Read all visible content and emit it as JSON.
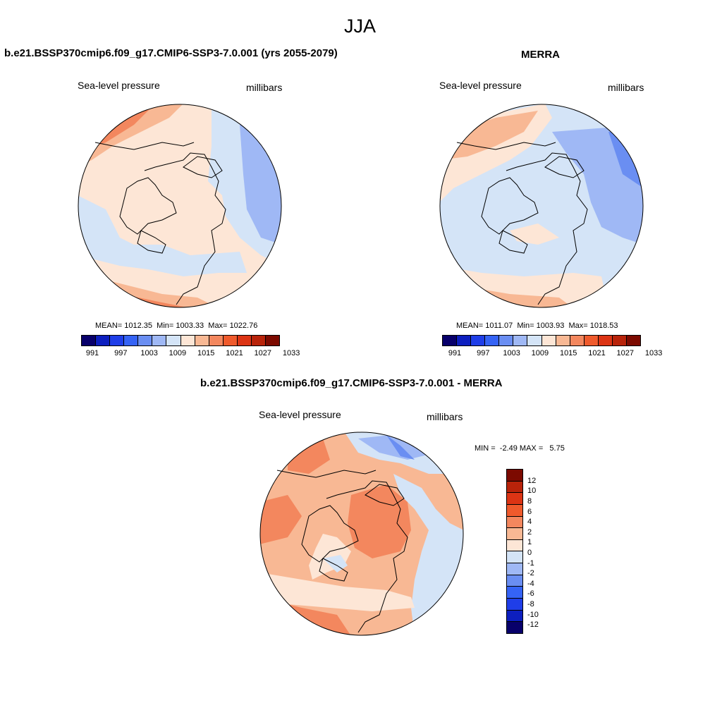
{
  "figure": {
    "season": "JJA"
  },
  "colors": {
    "abs_palette": [
      "#08006b",
      "#0d1fbf",
      "#1f3ee8",
      "#3563f5",
      "#6a8ef2",
      "#9fb8f5",
      "#d4e4f7",
      "#fde6d6",
      "#f8b894",
      "#f3875e",
      "#ef5a2c",
      "#dc3414",
      "#b8230a",
      "#7c0a00"
    ],
    "diff_palette": [
      "#7c0a00",
      "#b8230a",
      "#dc3414",
      "#ef5a2c",
      "#f3875e",
      "#f8b894",
      "#fde6d6",
      "#d4e4f7",
      "#9fb8f5",
      "#6a8ef2",
      "#3563f5",
      "#1f3ee8",
      "#0d1fbf",
      "#08006b"
    ]
  },
  "panels": {
    "model": {
      "title": "b.e21.BSSP370cmip6.f09_g17.CMIP6-SSP3-7.0.001 (yrs 2055-2079)",
      "variable": "Sea-level pressure",
      "units": "millibars",
      "stats": {
        "mean_label": "MEAN=",
        "mean": "1012.35",
        "min_label": "Min=",
        "min": "1003.33",
        "max_label": "Max=",
        "max": "1022.76"
      },
      "colorbar_ticks": [
        "991",
        "997",
        "1003",
        "1009",
        "1015",
        "1021",
        "1027",
        "1033"
      ]
    },
    "obs": {
      "title": "MERRA",
      "variable": "Sea-level pressure",
      "units": "millibars",
      "stats": {
        "mean_label": "MEAN=",
        "mean": "1011.07",
        "min_label": "Min=",
        "min": "1003.93",
        "max_label": "Max=",
        "max": "1018.53"
      },
      "colorbar_ticks": [
        "991",
        "997",
        "1003",
        "1009",
        "1015",
        "1021",
        "1027",
        "1033"
      ]
    },
    "diff": {
      "title": "b.e21.BSSP370cmip6.f09_g17.CMIP6-SSP3-7.0.001 - MERRA",
      "variable": "Sea-level pressure",
      "units": "millibars",
      "minmax": {
        "min_label": "MIN =",
        "min": "-2.49",
        "max_label": "MAX =",
        "max": "5.75"
      },
      "colorbar_ticks": [
        "12",
        "10",
        "8",
        "6",
        "4",
        "2",
        "1",
        "0",
        "-1",
        "-2",
        "-4",
        "-6",
        "-8",
        "-10",
        "-12"
      ]
    }
  }
}
